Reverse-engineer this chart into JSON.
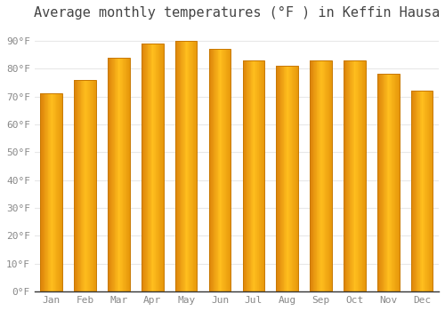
{
  "title": "Average monthly temperatures (°F ) in Keffin Hausa",
  "months": [
    "Jan",
    "Feb",
    "Mar",
    "Apr",
    "May",
    "Jun",
    "Jul",
    "Aug",
    "Sep",
    "Oct",
    "Nov",
    "Dec"
  ],
  "temperatures": [
    71,
    76,
    84,
    89,
    90,
    87,
    83,
    81,
    83,
    83,
    78,
    72
  ],
  "ylim": [
    0,
    95
  ],
  "yticks": [
    0,
    10,
    20,
    30,
    40,
    50,
    60,
    70,
    80,
    90
  ],
  "ytick_labels": [
    "0°F",
    "10°F",
    "20°F",
    "30°F",
    "40°F",
    "50°F",
    "60°F",
    "70°F",
    "80°F",
    "90°F"
  ],
  "background_color": "#FFFFFF",
  "grid_color": "#E8E8E8",
  "title_fontsize": 11,
  "tick_fontsize": 8,
  "bar_width": 0.65,
  "bar_color_left": "#E8860A",
  "bar_color_center": "#FFBB33",
  "bar_color_right": "#F0950F",
  "bar_outline_color": "#C87800"
}
